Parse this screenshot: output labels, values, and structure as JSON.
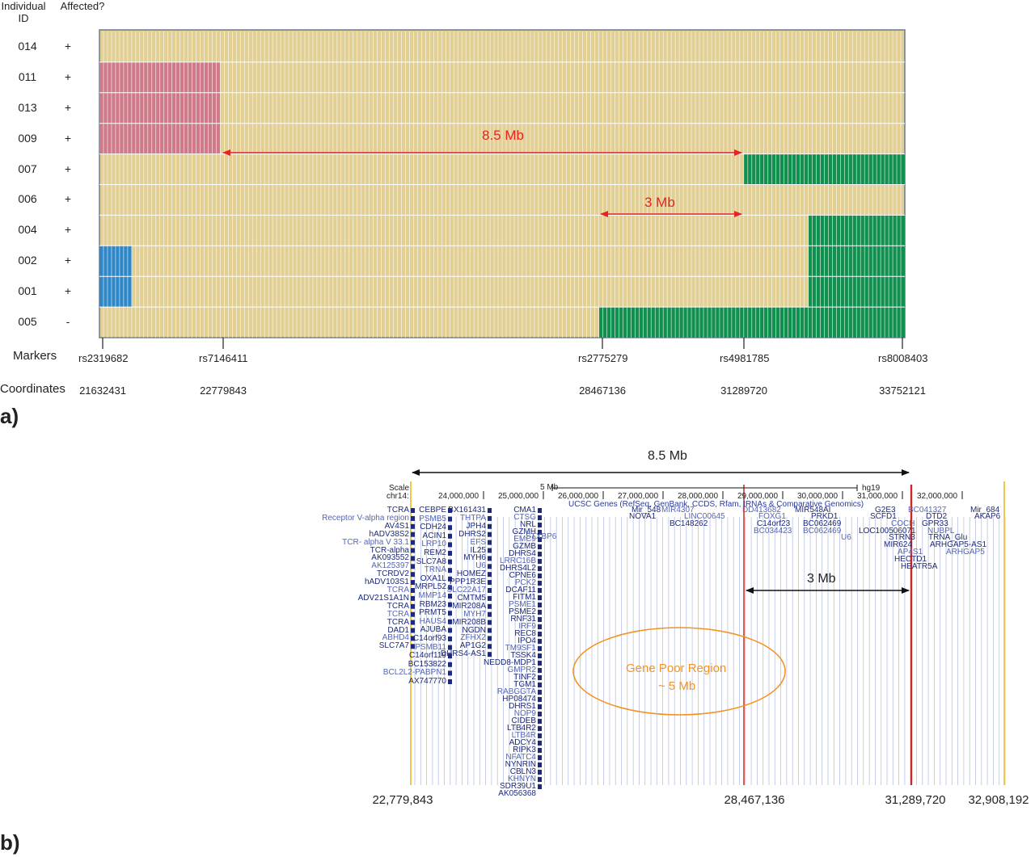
{
  "panel_a": {
    "label": "a)",
    "header_individual": "Individual ID",
    "header_affected": "Affected?",
    "rows": [
      {
        "id": "014",
        "affected": "+"
      },
      {
        "id": "011",
        "affected": "+"
      },
      {
        "id": "013",
        "affected": "+"
      },
      {
        "id": "009",
        "affected": "+"
      },
      {
        "id": "007",
        "affected": "+"
      },
      {
        "id": "006",
        "affected": "+"
      },
      {
        "id": "004",
        "affected": "+"
      },
      {
        "id": "002",
        "affected": "+"
      },
      {
        "id": "001",
        "affected": "+"
      },
      {
        "id": "005",
        "affected": "-"
      }
    ],
    "markers_label": "Markers",
    "coordinates_label": "Coordinates",
    "markers": [
      {
        "name": "rs2319682",
        "coordinate": "21632431"
      },
      {
        "name": "rs7146411",
        "coordinate": "22779843"
      },
      {
        "name": "rs2775279",
        "coordinate": "28467136"
      },
      {
        "name": "rs4981785",
        "coordinate": "31289720"
      },
      {
        "name": "rs8008403",
        "coordinate": "33752121"
      }
    ],
    "arrow_long_label": "8.5 Mb",
    "arrow_short_label": "3 Mb",
    "colors": {
      "background": "#e2cf94",
      "pink": "#cf7a88",
      "green": "#119050",
      "blue": "#2e88c8",
      "arrow": "#e52421"
    }
  },
  "panel_b": {
    "label": "b)",
    "arrow_long_label": "8.5 Mb",
    "arrow_short_label": "3 Mb",
    "ellipse_label_1": "Gene Poor Region",
    "ellipse_label_2": "~ 5 Mb",
    "scale_label": "Scale",
    "chrom_label": "chr14:",
    "scale_bar_label": "5 Mb",
    "assembly_label": "hg19",
    "track_title": "UCSC Genes (RefSeq, GenBank, CCDS, Rfam, tRNAs & Comparative Genomics)",
    "axis_ticks": [
      "24,000,000",
      "25,000,000",
      "26,000,000",
      "27,000,000",
      "28,000,000",
      "29,000,000",
      "30,000,000",
      "31,000,000",
      "32,000,000"
    ],
    "bottom_coords": [
      "22,779,843",
      "28,467,136",
      "31,289,720",
      "32,908,192"
    ],
    "genes_col1": [
      "TCRA",
      "Receptor V-alpha region",
      "AV4S1",
      "hADV38S2",
      "TCR- alpha V 33.1",
      "TCR-alpha",
      "AK093552",
      "AK125397",
      "TCRDV2",
      "hADV103S1",
      "TCRA",
      "ADV21S1A1N",
      "TCRA",
      "TCRA",
      "TCRA",
      "DAD1",
      "ABHD4",
      "SLC7A7"
    ],
    "genes_col2": [
      "CEBPE",
      "PSMB5",
      "CDH24",
      "ACIN1",
      "LRP10",
      "REM2",
      "SLC7A8",
      "TRNA",
      "OXA1L",
      "MRPL52",
      "MMP14",
      "RBM23",
      "PRMT5",
      "HAUS4",
      "AJUBA",
      "C14orf93",
      "PSMB11",
      "C14orf119",
      "BC153822",
      "BCL2L2-PABPN1",
      "AX747770"
    ],
    "genes_col3": [
      "BX161431",
      "THTPA",
      "JPH4",
      "DHRS2",
      "EFS",
      "IL25",
      "MYH6",
      "U6",
      "HOMEZ",
      "PPP1R3E",
      "SLC22A17",
      "CMTM5",
      "MIR208A",
      "MYH7",
      "MIR208B",
      "NGDN",
      "ZFHX2",
      "AP1G2",
      "DHRS4-AS1"
    ],
    "genes_col4": [
      "CMA1",
      "CTSG",
      "NRL",
      "GZMH",
      "EMC9",
      "GZMB",
      "DHRS4",
      "LRRC16B",
      "DHRS4L2",
      "CPNE6",
      "PCK2",
      "DCAF11",
      "FITM1",
      "PSME1",
      "PSME2",
      "RNF31",
      "IRF9",
      "REC8",
      "IPO4",
      "TM9SF1",
      "TSSK4",
      "NEDD8-MDP1",
      "GMPR2",
      "TINF2",
      "TGM1",
      "RABGGTA",
      "HP08474",
      "DHRS1",
      "NOP9",
      "CIDEB",
      "LTB4R2",
      "LTB4R",
      "ADCY4",
      "RIPK3",
      "NFATC4",
      "NYNRIN",
      "CBLN3",
      "KHNYN",
      "SDR39U1",
      "AK056368"
    ],
    "genes_mid": [
      "STXBP6",
      "Mir_548",
      "MIR4307",
      "NOVA1",
      "LINC00645",
      "BC148262",
      "DD413682",
      "C14orf23",
      "BC034423",
      "MIR548AI",
      "FOXG1",
      "BC062469",
      "BC062469",
      "PRKD1",
      "U6",
      "LOC100506071"
    ],
    "genes_right": [
      "G2E3",
      "SCFD1",
      "COCH",
      "STRN3",
      "MIR624",
      "AP4S1",
      "HECTD1",
      "HEATR5A",
      "BC041327",
      "DTD2",
      "GPR33",
      "NUBPL",
      "TRNA_Glu",
      "ARHGAP5-AS1",
      "ARHGAP5",
      "Mir_684",
      "AKAP6"
    ]
  }
}
